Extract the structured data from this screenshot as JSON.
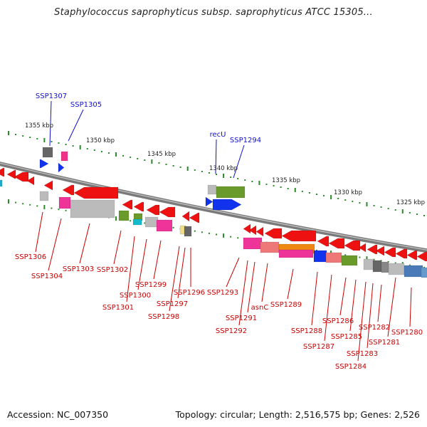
{
  "title": "Staphylococcus saprophyticus subsp. saprophyticus ATCC 15305...",
  "footer": {
    "accession": "Accession: NC_007350",
    "summary": "Topology: circular; Length: 2,516,575 bp; Genes: 2,526"
  },
  "colors": {
    "backbone": "#7a7a7a",
    "forward_label": "#1010cc",
    "reverse_label": "#cc0000",
    "tick": "#2a8a2a",
    "gene_red": "#ee1111",
    "gene_blue": "#1133ee"
  },
  "scale_labels": [
    "1355 kbp",
    "1350 kbp",
    "1345 kbp",
    "1340 kbp",
    "1335 kbp",
    "1330 kbp",
    "1325 kbp"
  ],
  "forward_labels": [
    "SSP1307",
    "SSP1305",
    "recU",
    "SSP1294"
  ],
  "reverse_labels": [
    "SSP1306",
    "SSP1304",
    "SSP1303",
    "SSP1302",
    "SSP1301",
    "SSP1300",
    "SSP1299",
    "SSP1298",
    "SSP1297",
    "SSP1296",
    "SSP1293",
    "SSP1292",
    "SSP1291",
    "asnC",
    "SSP1289",
    "SSP1288",
    "SSP1287",
    "SSP1286",
    "SSP1285",
    "SSP1284",
    "SSP1283",
    "SSP1282",
    "SSP1281",
    "SSP1280"
  ]
}
